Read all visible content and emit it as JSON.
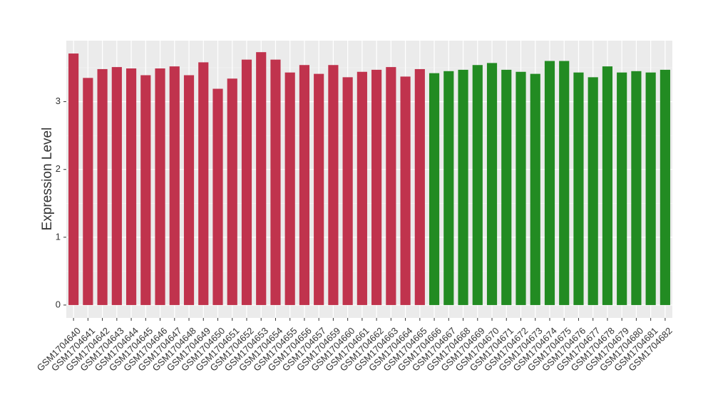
{
  "chart_data": {
    "type": "bar",
    "y_label": "Expression Level",
    "categories": [
      "GSM1704640",
      "GSM1704641",
      "GSM1704642",
      "GSM1704643",
      "GSM1704644",
      "GSM1704645",
      "GSM1704646",
      "GSM1704647",
      "GSM1704648",
      "GSM1704649",
      "GSM1704650",
      "GSM1704651",
      "GSM1704652",
      "GSM1704653",
      "GSM1704654",
      "GSM1704655",
      "GSM1704656",
      "GSM1704657",
      "GSM1704659",
      "GSM1704660",
      "GSM1704661",
      "GSM1704662",
      "GSM1704663",
      "GSM1704664",
      "GSM1704665",
      "GSM1704666",
      "GSM1704667",
      "GSM1704668",
      "GSM1704669",
      "GSM1704670",
      "GSM1704671",
      "GSM1704672",
      "GSM1704673",
      "GSM1704674",
      "GSM1704675",
      "GSM1704676",
      "GSM1704677",
      "GSM1704678",
      "GSM1704679",
      "GSM1704680",
      "GSM1704681",
      "GSM1704682"
    ],
    "values": [
      3.71,
      3.35,
      3.48,
      3.51,
      3.49,
      3.39,
      3.49,
      3.52,
      3.39,
      3.58,
      3.19,
      3.34,
      3.62,
      3.73,
      3.62,
      3.43,
      3.54,
      3.41,
      3.54,
      3.36,
      3.44,
      3.47,
      3.51,
      3.37,
      3.48,
      3.42,
      3.45,
      3.47,
      3.54,
      3.57,
      3.47,
      3.44,
      3.41,
      3.6,
      3.6,
      3.43,
      3.36,
      3.52,
      3.43,
      3.45,
      3.43,
      3.47
    ],
    "colors": [
      "#c0334d",
      "#c0334d",
      "#c0334d",
      "#c0334d",
      "#c0334d",
      "#c0334d",
      "#c0334d",
      "#c0334d",
      "#c0334d",
      "#c0334d",
      "#c0334d",
      "#c0334d",
      "#c0334d",
      "#c0334d",
      "#c0334d",
      "#c0334d",
      "#c0334d",
      "#c0334d",
      "#c0334d",
      "#c0334d",
      "#c0334d",
      "#c0334d",
      "#c0334d",
      "#c0334d",
      "#c0334d",
      "#228b22",
      "#228b22",
      "#228b22",
      "#228b22",
      "#228b22",
      "#228b22",
      "#228b22",
      "#228b22",
      "#228b22",
      "#228b22",
      "#228b22",
      "#228b22",
      "#228b22",
      "#228b22",
      "#228b22",
      "#228b22",
      "#228b22"
    ],
    "ylim": [
      -0.19,
      3.9
    ],
    "yticks": [
      0,
      1,
      2,
      3
    ],
    "grid": true
  }
}
